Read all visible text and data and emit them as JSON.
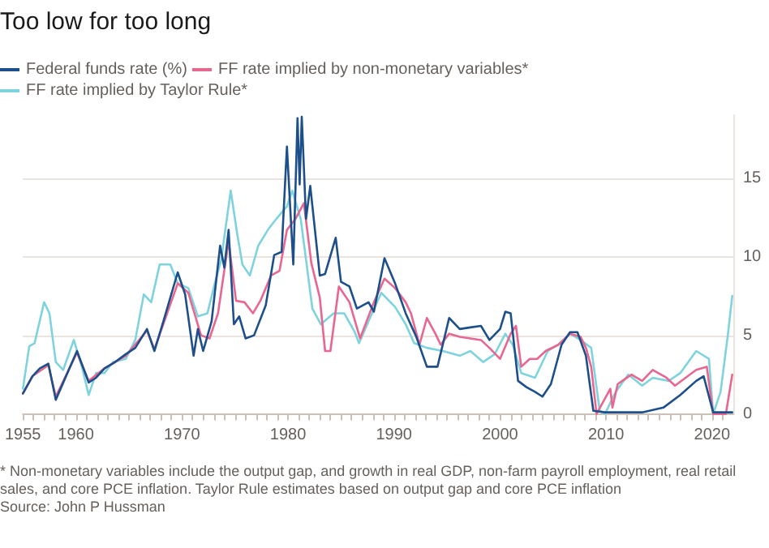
{
  "chart_data": {
    "type": "line",
    "title": "Too low for too long",
    "legend": "top left",
    "grid": "y",
    "marker": "none",
    "line_style": "solid",
    "xlim": [
      1955,
      2022
    ],
    "xticks": [
      1955,
      {
        "value": 1956,
        "label": null
      },
      {
        "value": 1957,
        "label": null
      },
      {
        "value": 1958,
        "label": null
      },
      {
        "value": 1959,
        "label": null
      },
      1960,
      {
        "value": 1961,
        "label": null
      },
      {
        "value": 1962,
        "label": null
      },
      {
        "value": 1963,
        "label": null
      },
      {
        "value": 1964,
        "label": null
      },
      {
        "value": 1965,
        "label": null
      },
      {
        "value": 1966,
        "label": null
      },
      {
        "value": 1967,
        "label": null
      },
      {
        "value": 1968,
        "label": null
      },
      {
        "value": 1969,
        "label": null
      },
      1970,
      {
        "value": 1971,
        "label": null
      },
      {
        "value": 1972,
        "label": null
      },
      {
        "value": 1973,
        "label": null
      },
      {
        "value": 1974,
        "label": null
      },
      {
        "value": 1975,
        "label": null
      },
      {
        "value": 1976,
        "label": null
      },
      {
        "value": 1977,
        "label": null
      },
      {
        "value": 1978,
        "label": null
      },
      {
        "value": 1979,
        "label": null
      },
      1980,
      {
        "value": 1981,
        "label": null
      },
      {
        "value": 1982,
        "label": null
      },
      {
        "value": 1983,
        "label": null
      },
      {
        "value": 1984,
        "label": null
      },
      {
        "value": 1985,
        "label": null
      },
      {
        "value": 1986,
        "label": null
      },
      {
        "value": 1987,
        "label": null
      },
      {
        "value": 1988,
        "label": null
      },
      {
        "value": 1989,
        "label": null
      },
      1990,
      {
        "value": 1991,
        "label": null
      },
      {
        "value": 1992,
        "label": null
      },
      {
        "value": 1993,
        "label": null
      },
      {
        "value": 1994,
        "label": null
      },
      {
        "value": 1995,
        "label": null
      },
      {
        "value": 1996,
        "label": null
      },
      {
        "value": 1997,
        "label": null
      },
      {
        "value": 1998,
        "label": null
      },
      {
        "value": 1999,
        "label": null
      },
      2000,
      {
        "value": 2001,
        "label": null
      },
      {
        "value": 2002,
        "label": null
      },
      {
        "value": 2003,
        "label": null
      },
      {
        "value": 2004,
        "label": null
      },
      {
        "value": 2005,
        "label": null
      },
      {
        "value": 2006,
        "label": null
      },
      {
        "value": 2007,
        "label": null
      },
      {
        "value": 2008,
        "label": null
      },
      {
        "value": 2009,
        "label": null
      },
      2010,
      {
        "value": 2011,
        "label": null
      },
      {
        "value": 2012,
        "label": null
      },
      {
        "value": 2013,
        "label": null
      },
      {
        "value": 2014,
        "label": null
      },
      {
        "value": 2015,
        "label": null
      },
      {
        "value": 2016,
        "label": null
      },
      {
        "value": 2017,
        "label": null
      },
      {
        "value": 2018,
        "label": null
      },
      {
        "value": 2019,
        "label": null
      },
      2020,
      {
        "value": 2021,
        "label": null
      }
    ],
    "ylim": [
      0,
      19
    ],
    "yticks": [
      0,
      5,
      10,
      15
    ],
    "series": [
      {
        "name": "Federal funds rate (%)",
        "color": "#1d4f8a",
        "x": [
          1955,
          1955.9,
          1956.6,
          1957.4,
          1958.1,
          1960.1,
          1961.2,
          1961.9,
          1962.7,
          1963.7,
          1964.7,
          1965.6,
          1966.7,
          1967.4,
          1968.3,
          1969.6,
          1970.3,
          1971.1,
          1971.5,
          1972,
          1972.8,
          1973.6,
          1974,
          1974.4,
          1974.9,
          1975.4,
          1976,
          1976.8,
          1977.9,
          1978.7,
          1979.4,
          1979.9,
          1980.5,
          1980.9,
          1981.1,
          1981.3,
          1981.7,
          1982.1,
          1983,
          1983.5,
          1984.5,
          1985,
          1985.8,
          1986.5,
          1987.6,
          1988.1,
          1989.1,
          1990.1,
          1991.1,
          1992.1,
          1993.1,
          1994.1,
          1995.2,
          1996.2,
          1997.2,
          1998.2,
          1999,
          2000,
          2000.5,
          2001,
          2001.7,
          2002.5,
          2003.3,
          2004,
          2004.8,
          2005.8,
          2006.6,
          2007.3,
          2008.1,
          2008.8,
          2009.9,
          2013.4,
          2015.4,
          2017,
          2018.5,
          2019.2,
          2020.1,
          2021.9
        ],
        "values": [
          1.3,
          2.4,
          2.9,
          3.2,
          0.9,
          4.0,
          2.0,
          2.3,
          2.9,
          3.3,
          3.8,
          4.2,
          5.4,
          4.0,
          6.0,
          9.0,
          7.6,
          3.7,
          5.4,
          4.0,
          5.9,
          10.7,
          9.3,
          11.7,
          5.7,
          6.2,
          4.8,
          5.0,
          6.9,
          10.1,
          10.3,
          17.0,
          9.5,
          18.8,
          14.6,
          18.9,
          12.4,
          14.5,
          8.8,
          8.9,
          11.2,
          8.4,
          8.1,
          6.7,
          7.1,
          6.5,
          9.9,
          8.3,
          6.4,
          4.9,
          3.0,
          3.0,
          6.1,
          5.4,
          5.5,
          5.6,
          4.7,
          5.4,
          6.5,
          6.4,
          2.1,
          1.7,
          1.4,
          1.1,
          1.9,
          4.4,
          5.2,
          5.2,
          3.7,
          0.2,
          0.1,
          0.1,
          0.4,
          1.2,
          2.1,
          2.4,
          0.1,
          0.1
        ]
      },
      {
        "name": "FF rate implied by non-monetary variables*",
        "color": "#e8668f",
        "x": [
          1955,
          1955.9,
          1957.4,
          1958.1,
          1960.1,
          1961.2,
          1962.7,
          1964.7,
          1966.7,
          1967.4,
          1968.5,
          1969.6,
          1970.6,
          1971.8,
          1972.6,
          1973.4,
          1974.4,
          1975.1,
          1975.9,
          1976.7,
          1977.4,
          1978.4,
          1979.2,
          1979.9,
          1980.7,
          1981.5,
          1982.2,
          1983,
          1983.5,
          1984,
          1984.8,
          1985.8,
          1986.8,
          1988.1,
          1989.1,
          1990.1,
          1991.1,
          1991.6,
          1992.4,
          1993.1,
          1993.9,
          1994.4,
          1995.2,
          1996.2,
          1997.2,
          1998.2,
          1999,
          2000,
          2001,
          2001.5,
          2002,
          2002.8,
          2003.5,
          2004.3,
          2005.5,
          2006.6,
          2007.6,
          2008.1,
          2008.6,
          2009.1,
          2010.4,
          2010.6,
          2011.1,
          2012.4,
          2013.4,
          2014.4,
          2015.7,
          2016.5,
          2017.5,
          2018.5,
          2019.5,
          2020.1,
          2021.3,
          2021.9
        ],
        "values": [
          1.3,
          2.4,
          3.1,
          1.1,
          3.9,
          2.1,
          2.9,
          3.7,
          5.3,
          4.1,
          6.2,
          8.3,
          7.7,
          5.0,
          4.8,
          6.4,
          11.0,
          7.2,
          7.1,
          6.4,
          7.2,
          8.8,
          9.1,
          11.7,
          12.4,
          13.4,
          9.6,
          7.4,
          4.0,
          4.0,
          8.1,
          7.1,
          4.8,
          7.1,
          8.6,
          8.0,
          7.1,
          6.4,
          4.4,
          6.1,
          5.1,
          4.4,
          5.1,
          4.9,
          4.8,
          4.7,
          4.2,
          3.5,
          5.1,
          5.6,
          3.0,
          3.5,
          3.5,
          4.0,
          4.4,
          5.1,
          4.9,
          4.2,
          3.0,
          0.0,
          1.6,
          0.4,
          1.9,
          2.5,
          2.1,
          2.8,
          2.3,
          1.8,
          2.3,
          2.8,
          3.0,
          0.0,
          0.0,
          2.5
        ]
      },
      {
        "name": "FF rate implied by Taylor Rule*",
        "color": "#7ed3de",
        "x": [
          1955,
          1955.6,
          1956.1,
          1957,
          1957.5,
          1958.1,
          1958.8,
          1959.8,
          1960.6,
          1961.2,
          1961.9,
          1962.7,
          1963.5,
          1964.7,
          1965.6,
          1966.4,
          1967.1,
          1967.9,
          1968.9,
          1969.6,
          1970.6,
          1971.5,
          1972.4,
          1973.1,
          1973.7,
          1974.6,
          1975.2,
          1975.7,
          1976.4,
          1977.2,
          1978.2,
          1978.9,
          1979.9,
          1980.4,
          1981.2,
          1982.3,
          1983.1,
          1984.3,
          1985.3,
          1986.3,
          1986.7,
          1987.8,
          1988.8,
          1990.1,
          1991.1,
          1991.9,
          1993.1,
          1994.6,
          1996.2,
          1997.2,
          1998.4,
          1999.5,
          2000.5,
          2001.2,
          2002,
          2003.3,
          2004.5,
          2005.5,
          2006.6,
          2007.6,
          2008.6,
          2009.4,
          2009.9,
          2010.9,
          2012.1,
          2013.4,
          2014.4,
          2015.9,
          2017,
          2018.5,
          2019.7,
          2020.1,
          2020.8,
          2021.5,
          2021.9
        ],
        "values": [
          1.6,
          4.3,
          4.5,
          7.1,
          6.4,
          3.3,
          2.8,
          4.7,
          2.9,
          1.2,
          2.6,
          2.6,
          3.3,
          3.5,
          4.7,
          7.6,
          7.1,
          9.5,
          9.5,
          8.3,
          8.0,
          6.2,
          6.4,
          8.3,
          9.8,
          14.2,
          11.5,
          9.5,
          8.8,
          10.7,
          11.8,
          12.4,
          13.2,
          14.2,
          12.4,
          6.7,
          5.7,
          6.4,
          6.4,
          5.2,
          4.5,
          6.2,
          7.7,
          6.8,
          5.7,
          4.5,
          4.2,
          4.0,
          3.7,
          4.0,
          3.3,
          3.8,
          5.1,
          4.4,
          2.6,
          2.3,
          4.0,
          4.4,
          5.1,
          4.7,
          4.2,
          0.2,
          0.0,
          1.4,
          2.5,
          1.8,
          2.3,
          2.1,
          2.6,
          4.0,
          3.5,
          0.0,
          1.4,
          5.1,
          7.5
        ]
      }
    ],
    "annotations": [
      "* Non-monetary variables include the output gap, and growth in real GDP, non-farm payroll employment, real retail sales, and core PCE inflation. Taylor Rule estimates based on output gap and core PCE inflation",
      "Source: John P Hussman"
    ]
  }
}
